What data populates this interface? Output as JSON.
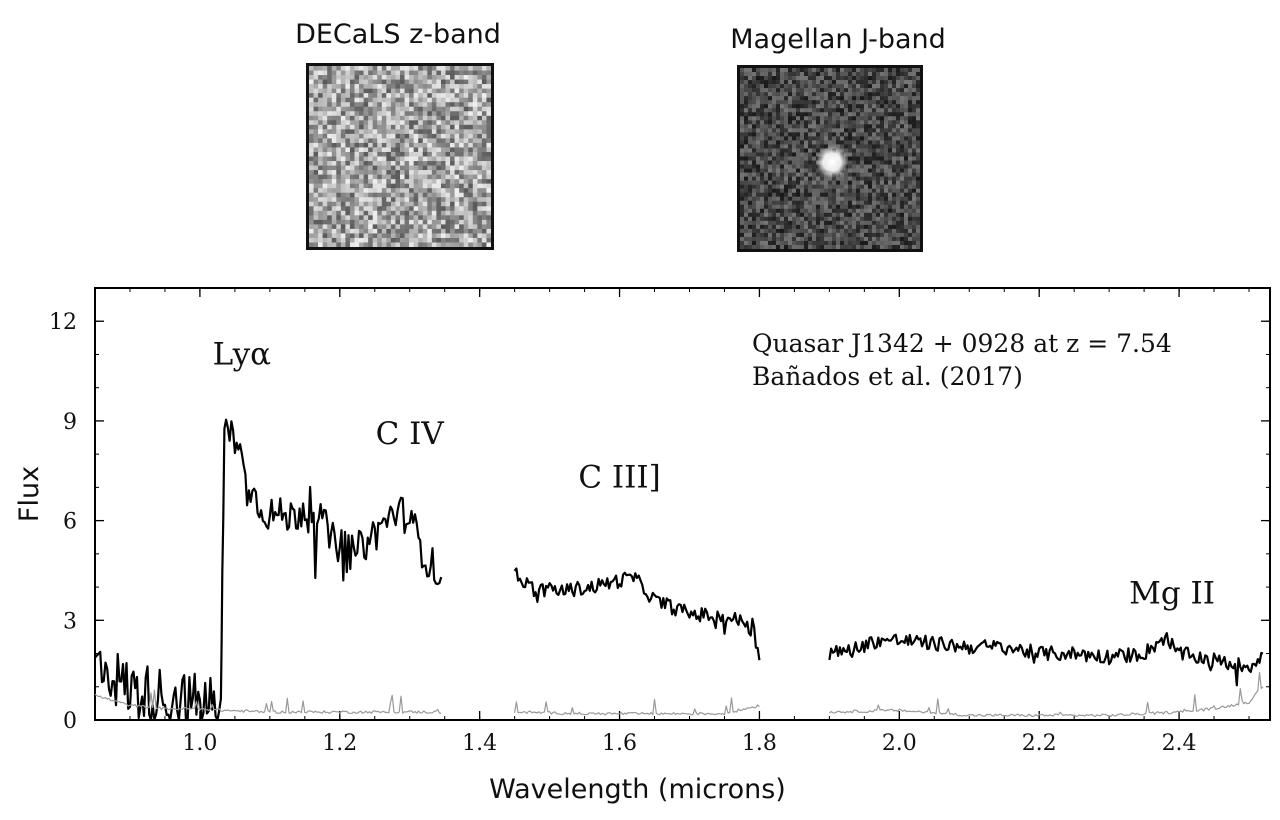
{
  "images": [
    {
      "title": "DECaLS z-band",
      "description": "noise"
    },
    {
      "title": "Magellan J-band",
      "description": "source"
    }
  ],
  "chart_data": {
    "type": "line",
    "title": "",
    "xlabel": "Wavelength (microns)",
    "ylabel": "Flux",
    "xlim": [
      0.85,
      2.53
    ],
    "ylim": [
      0,
      13
    ],
    "xticks": [
      1.0,
      1.2,
      1.4,
      1.6,
      1.8,
      2.0,
      2.2,
      2.4
    ],
    "xtick_labels": [
      "1.0",
      "1.2",
      "1.4",
      "1.6",
      "1.8",
      "2.0",
      "2.2",
      "2.4"
    ],
    "yticks": [
      0,
      3,
      6,
      9,
      12
    ],
    "ytick_labels": [
      "0",
      "3",
      "6",
      "9",
      "12"
    ],
    "annotation_lines": [
      "Quasar J1342 + 0928 at z = 7.54",
      "Bañados et al. (2017)"
    ],
    "line_labels": [
      {
        "text": "Lyα",
        "x": 1.06,
        "y": 10.7
      },
      {
        "text": "C IV",
        "x": 1.3,
        "y": 8.3
      },
      {
        "text": "C III]",
        "x": 1.6,
        "y": 7.0
      },
      {
        "text": "Mg II",
        "x": 2.39,
        "y": 3.5
      }
    ],
    "series": [
      {
        "name": "Flux",
        "color": "#000000",
        "segments": [
          {
            "x": [
              0.85,
              0.9,
              0.95,
              1.0,
              1.03,
              1.032,
              1.035,
              1.045,
              1.06,
              1.08,
              1.1,
              1.13,
              1.16,
              1.19,
              1.22,
              1.25,
              1.28,
              1.3,
              1.32,
              1.345
            ],
            "y": [
              1.8,
              0.9,
              0.7,
              0.5,
              0.5,
              4.0,
              8.6,
              8.8,
              7.8,
              6.6,
              6.2,
              6.1,
              6.5,
              5.4,
              5.0,
              5.6,
              6.3,
              6.1,
              5.0,
              4.3
            ]
          },
          {
            "x": [
              1.45,
              1.48,
              1.52,
              1.56,
              1.6,
              1.62,
              1.65,
              1.7,
              1.75,
              1.79,
              1.8
            ],
            "y": [
              4.4,
              3.9,
              3.9,
              4.0,
              4.2,
              4.3,
              3.6,
              3.2,
              3.1,
              2.9,
              1.8
            ]
          },
          {
            "x": [
              1.9,
              1.93,
              1.97,
              2.0,
              2.05,
              2.1,
              2.15,
              2.2,
              2.25,
              2.3,
              2.35,
              2.38,
              2.4,
              2.45,
              2.5,
              2.52
            ],
            "y": [
              2.0,
              2.1,
              2.4,
              2.4,
              2.3,
              2.2,
              2.2,
              2.0,
              2.0,
              1.9,
              2.0,
              2.5,
              2.0,
              1.8,
              1.6,
              2.0
            ]
          }
        ]
      },
      {
        "name": "Error",
        "color": "#999999",
        "segments": [
          {
            "x": [
              0.85,
              0.9,
              0.95,
              1.0,
              1.035,
              1.1,
              1.2,
              1.3,
              1.345
            ],
            "y": [
              0.7,
              0.4,
              0.3,
              0.3,
              0.25,
              0.2,
              0.2,
              0.2,
              0.2
            ]
          },
          {
            "x": [
              1.45,
              1.55,
              1.65,
              1.75,
              1.8
            ],
            "y": [
              0.2,
              0.15,
              0.15,
              0.15,
              0.4
            ]
          },
          {
            "x": [
              1.9,
              2.0,
              2.1,
              2.2,
              2.3,
              2.4,
              2.45,
              2.5,
              2.52
            ],
            "y": [
              0.2,
              0.25,
              0.1,
              0.1,
              0.1,
              0.2,
              0.3,
              0.5,
              1.0
            ]
          }
        ]
      }
    ]
  }
}
